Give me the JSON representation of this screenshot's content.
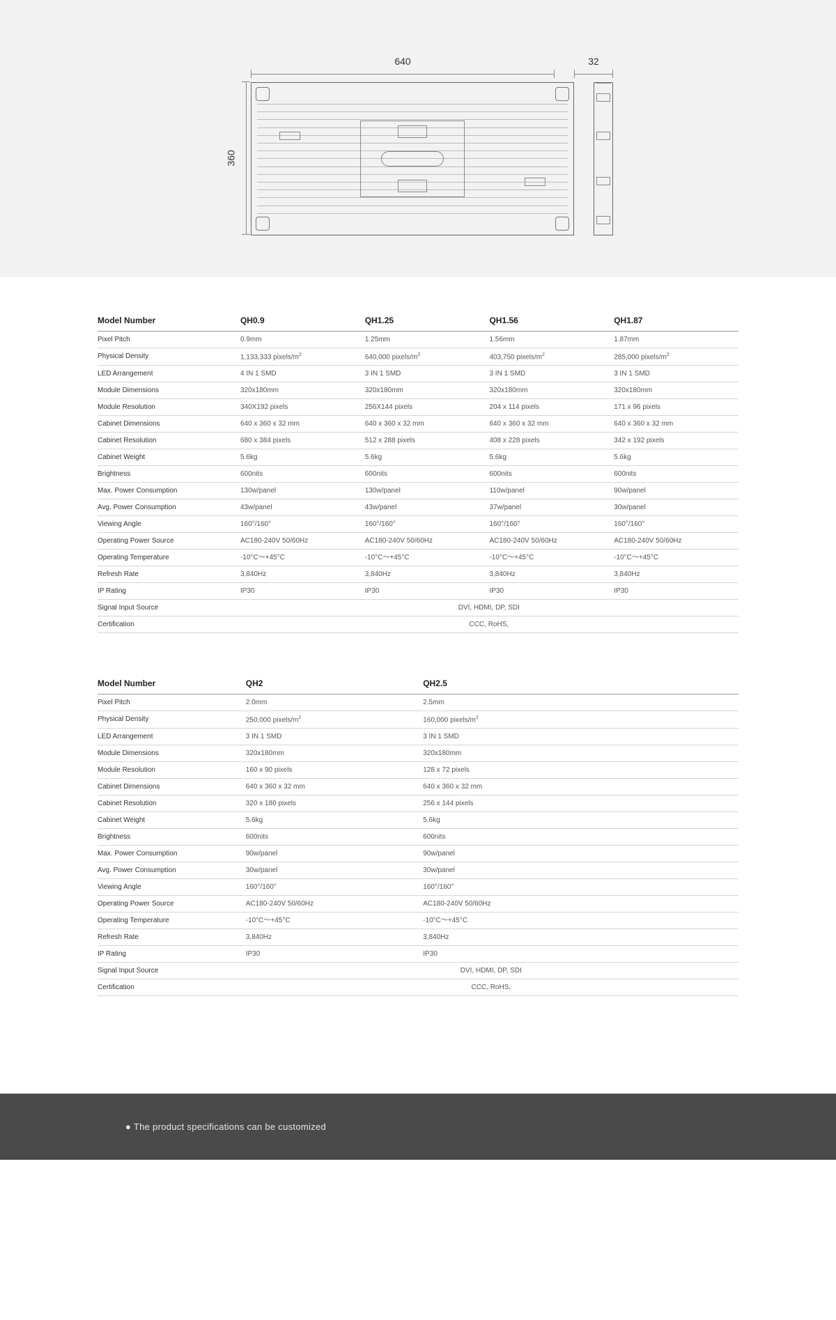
{
  "diagram": {
    "width_label": "640",
    "depth_label": "32",
    "height_label": "360"
  },
  "table1": {
    "header_label": "Model Number",
    "models": [
      "QH0.9",
      "QH1.25",
      "QH1.56",
      "QH1.87"
    ],
    "rows": [
      {
        "label": "Pixel Pitch",
        "vals": [
          "0.9mm",
          "1.25mm",
          "1.56mm",
          "1.87mm"
        ]
      },
      {
        "label": "Physical Density",
        "vals": [
          "1,133,333 pixels/m²",
          "640,000 pixels/m²",
          "403,750 pixels/m²",
          "285,000 pixels/m²"
        ]
      },
      {
        "label": "LED Arrangement",
        "vals": [
          "4 IN 1 SMD",
          "3 IN 1 SMD",
          "3 IN 1 SMD",
          "3 IN 1 SMD"
        ]
      },
      {
        "label": "Module Dimensions",
        "vals": [
          "320x180mm",
          "320x180mm",
          "320x180mm",
          "320x180mm"
        ]
      },
      {
        "label": "Module Resolution",
        "vals": [
          "340X192 pixels",
          "256X144 pixels",
          "204 x 114 pixels",
          "171 x 96 pixels"
        ]
      },
      {
        "label": "Cabinet Dimensions",
        "vals": [
          "640 x 360 x 32 mm",
          "640 x 360 x 32 mm",
          "640 x 360 x 32 mm",
          "640 x 360 x 32 mm"
        ]
      },
      {
        "label": "Cabinet Resolution",
        "vals": [
          "680 x 384 pixels",
          "512 x 288 pixels",
          "408 x 228 pixels",
          "342 x 192  pixels"
        ]
      },
      {
        "label": "Cabinet Weight",
        "vals": [
          "5.6kg",
          "5.6kg",
          "5.6kg",
          "5.6kg"
        ]
      },
      {
        "label": "Brightness",
        "vals": [
          "600nits",
          "600nits",
          "600nits",
          "600nits"
        ]
      },
      {
        "label": "Max. Power Consumption",
        "vals": [
          "130w/panel",
          "130w/panel",
          "110w/panel",
          "90w/panel"
        ]
      },
      {
        "label": "Avg. Power Consumption",
        "vals": [
          "43w/panel",
          "43w/panel",
          "37w/panel",
          "30w/panel"
        ]
      },
      {
        "label": "Viewing Angle",
        "vals": [
          "160°/160°",
          "160°/160°",
          "160°/160°",
          "160°/160°"
        ]
      },
      {
        "label": "Operating Power Source",
        "vals": [
          "AC180-240V 50/60Hz",
          "AC180-240V 50/60Hz",
          "AC180-240V 50/60Hz",
          "AC180-240V 50/60Hz"
        ]
      },
      {
        "label": "Operating Temperature",
        "vals": [
          "-10°C～+45°C",
          "-10°C～+45°C",
          "-10°C～+45°C",
          "-10°C～+45°C"
        ]
      },
      {
        "label": "Refresh Rate",
        "vals": [
          "3,840Hz",
          "3,840Hz",
          "3,840Hz",
          "3,840Hz"
        ]
      },
      {
        "label": "IP Rating",
        "vals": [
          "IP30",
          "IP30",
          "IP30",
          "IP30"
        ]
      }
    ],
    "signal_label": "Signal Input Source",
    "signal_value": "DVI, HDMI, DP, SDI",
    "cert_label": "Certification",
    "cert_value": "CCC, RoHS,"
  },
  "table2": {
    "header_label": "Model Number",
    "models": [
      "QH2",
      "QH2.5"
    ],
    "rows": [
      {
        "label": "Pixel Pitch",
        "vals": [
          "2.0mm",
          "2.5mm"
        ]
      },
      {
        "label": "Physical Density",
        "vals": [
          "250,000 pixels/m²",
          "160,000 pixels/m²"
        ]
      },
      {
        "label": "LED Arrangement",
        "vals": [
          "3 IN 1 SMD",
          "3 IN 1 SMD"
        ]
      },
      {
        "label": "Module Dimensions",
        "vals": [
          "320x180mm",
          "320x180mm"
        ]
      },
      {
        "label": "Module Resolution",
        "vals": [
          "160 x 90 pixels",
          "128 x 72 pixels"
        ]
      },
      {
        "label": "Cabinet Dimensions",
        "vals": [
          "640 x 360 x 32 mm",
          "640 x 360 x 32 mm"
        ]
      },
      {
        "label": "Cabinet Resolution",
        "vals": [
          "320 x 180  pixels",
          "256 x 144 pixels"
        ]
      },
      {
        "label": "Cabinet Weight",
        "vals": [
          "5.6kg",
          "5.6kg"
        ]
      },
      {
        "label": "Brightness",
        "vals": [
          "600nits",
          "600nits"
        ]
      },
      {
        "label": "Max. Power Consumption",
        "vals": [
          "90w/panel",
          "90w/panel"
        ]
      },
      {
        "label": "Avg. Power Consumption",
        "vals": [
          "30w/panel",
          "30w/panel"
        ]
      },
      {
        "label": "Viewing Angle",
        "vals": [
          "160°/160°",
          "160°/160°"
        ]
      },
      {
        "label": "Operating Power Source",
        "vals": [
          "AC180-240V 50/60Hz",
          "AC180-240V 50/60Hz"
        ]
      },
      {
        "label": "Operating Temperature",
        "vals": [
          "-10°C～+45°C",
          "-10°C～+45°C"
        ]
      },
      {
        "label": "Refresh Rate",
        "vals": [
          "3,840Hz",
          "3,840Hz"
        ]
      },
      {
        "label": "IP Rating",
        "vals": [
          "IP30",
          "IP30"
        ]
      }
    ],
    "signal_label": "Signal Input Source",
    "signal_value": "DVI, HDMI, DP, SDI",
    "cert_label": "Certification",
    "cert_value": "CCC, RoHS,"
  },
  "footer": {
    "text": "● The product specifications can be customized"
  }
}
